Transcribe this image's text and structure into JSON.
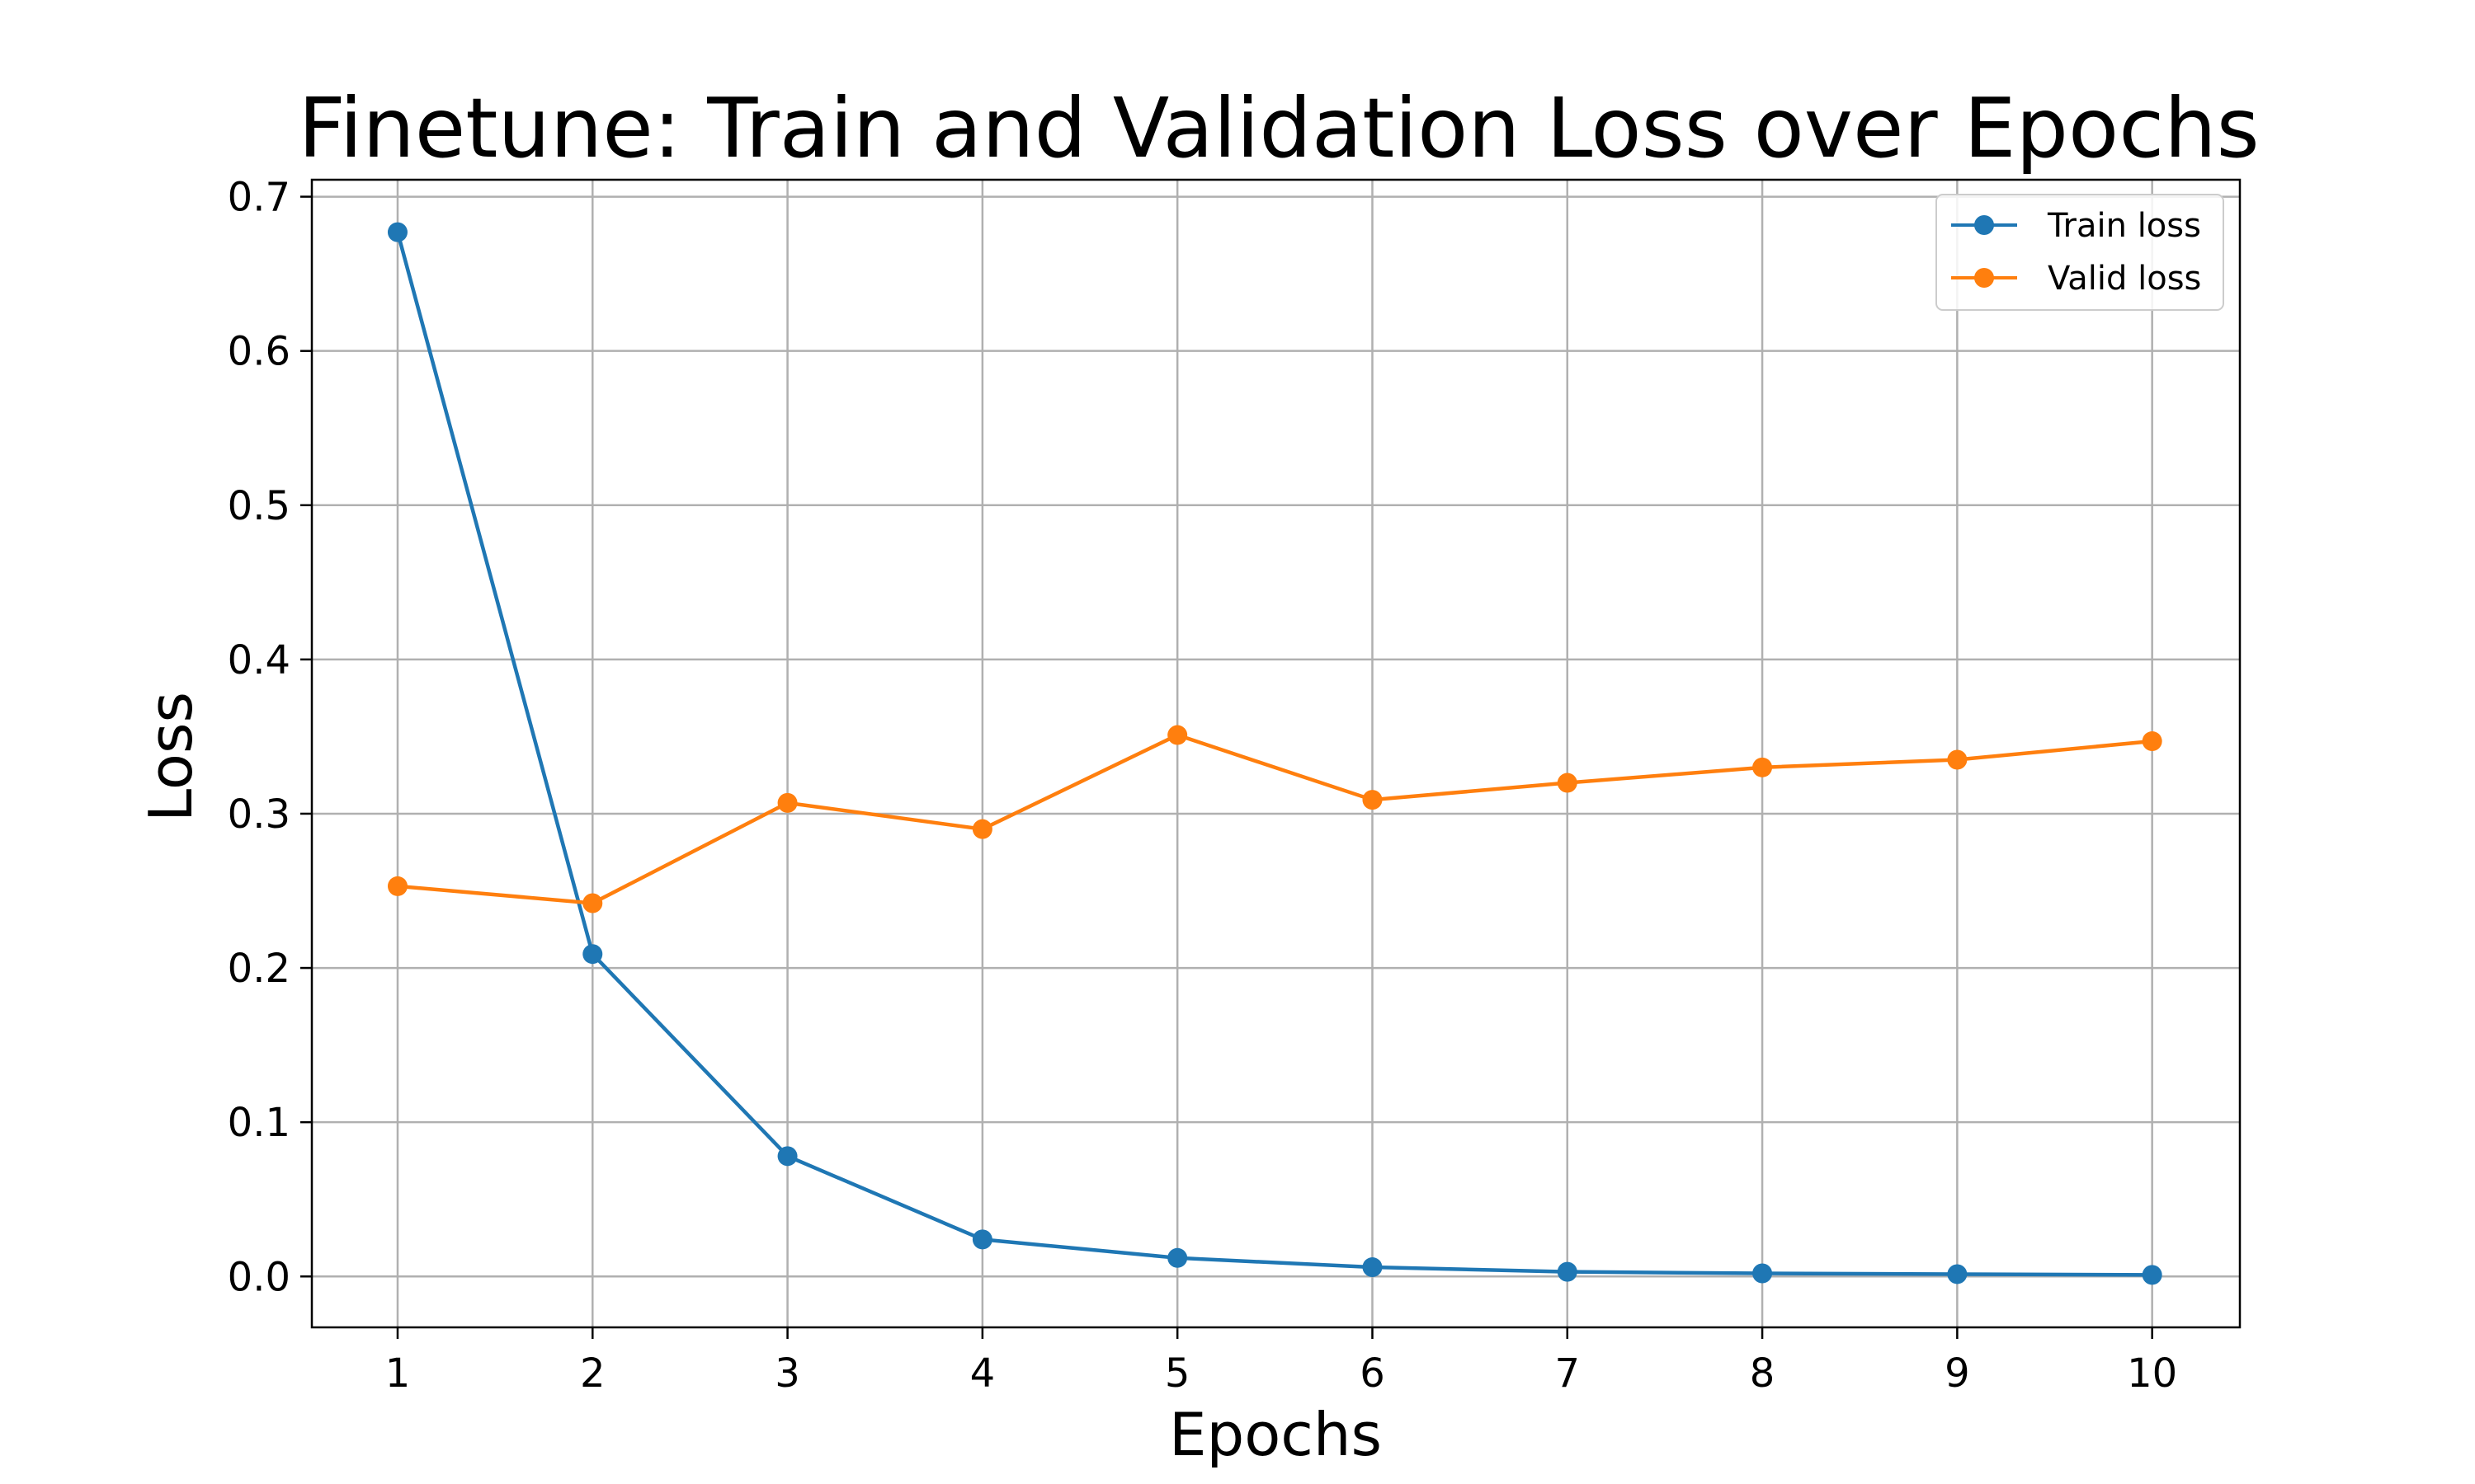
{
  "chart_data": {
    "type": "line",
    "title": "Finetune: Train and Validation Loss over Epochs",
    "xlabel": "Epochs",
    "ylabel": "Loss",
    "x": [
      1,
      2,
      3,
      4,
      5,
      6,
      7,
      8,
      9,
      10
    ],
    "xticks": [
      "1",
      "2",
      "3",
      "4",
      "5",
      "6",
      "7",
      "8",
      "9",
      "10"
    ],
    "yticks": [
      "0.0",
      "0.1",
      "0.2",
      "0.3",
      "0.4",
      "0.5",
      "0.6",
      "0.7"
    ],
    "xlim": [
      0.56,
      10.45
    ],
    "ylim": [
      -0.033,
      0.711
    ],
    "grid": true,
    "legend_position": "top-right",
    "series": [
      {
        "name": "Train loss",
        "color": "#1f77b4",
        "values": [
          0.677,
          0.209,
          0.078,
          0.024,
          0.012,
          0.006,
          0.003,
          0.002,
          0.0015,
          0.001
        ]
      },
      {
        "name": "Valid loss",
        "color": "#ff7f0e",
        "values": [
          0.253,
          0.242,
          0.307,
          0.29,
          0.351,
          0.309,
          0.32,
          0.33,
          0.335,
          0.347
        ]
      }
    ]
  }
}
